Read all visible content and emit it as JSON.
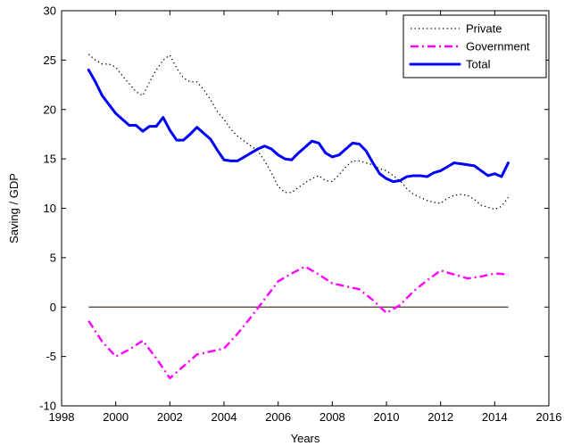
{
  "chart_data": {
    "type": "line",
    "title": "",
    "xlabel": "Years",
    "ylabel": "Saving / GDP",
    "xlim": [
      1998,
      2016
    ],
    "ylim": [
      -10,
      30
    ],
    "xticks": [
      1998,
      2000,
      2002,
      2004,
      2006,
      2008,
      2010,
      2012,
      2014,
      2016
    ],
    "yticks": [
      -10,
      -5,
      0,
      5,
      10,
      15,
      20,
      25,
      30
    ],
    "grid": false,
    "legend_position": "top-right",
    "reference_line": {
      "y": 0,
      "x_range": [
        1999,
        2014.5
      ],
      "color": "#4a3a2a"
    },
    "series": [
      {
        "name": "Private",
        "color": "#000000",
        "style": "dotted",
        "x": [
          1999,
          1999.25,
          1999.5,
          1999.75,
          2000,
          2000.25,
          2000.5,
          2000.75,
          2001,
          2001.25,
          2001.5,
          2001.75,
          2002,
          2002.25,
          2002.5,
          2002.75,
          2003,
          2003.25,
          2003.5,
          2003.75,
          2004,
          2004.25,
          2004.5,
          2004.75,
          2005,
          2005.25,
          2005.5,
          2005.75,
          2006,
          2006.25,
          2006.5,
          2006.75,
          2007,
          2007.25,
          2007.5,
          2007.75,
          2008,
          2008.25,
          2008.5,
          2008.75,
          2009,
          2009.25,
          2009.5,
          2009.75,
          2010,
          2010.25,
          2010.5,
          2010.75,
          2011,
          2011.25,
          2011.5,
          2011.75,
          2012,
          2012.25,
          2012.5,
          2012.75,
          2013,
          2013.25,
          2013.5,
          2013.75,
          2014,
          2014.25,
          2014.5
        ],
        "values": [
          25.6,
          25.0,
          24.6,
          24.6,
          24.3,
          23.4,
          22.6,
          21.8,
          21.4,
          22.8,
          24.0,
          25.0,
          25.5,
          24.2,
          23.2,
          22.8,
          22.8,
          22.0,
          21.0,
          19.8,
          19.0,
          18.0,
          17.3,
          16.8,
          16.3,
          15.8,
          14.8,
          13.6,
          12.2,
          11.6,
          11.6,
          12.1,
          12.6,
          13.0,
          13.3,
          12.8,
          12.7,
          13.4,
          14.2,
          14.8,
          14.8,
          14.6,
          14.4,
          14.0,
          13.8,
          13.3,
          12.8,
          12.0,
          11.4,
          11.1,
          10.8,
          10.6,
          10.5,
          11.0,
          11.3,
          11.4,
          11.3,
          10.9,
          10.3,
          10.1,
          9.9,
          10.2,
          11.1
        ]
      },
      {
        "name": "Government",
        "color": "#ff00ff",
        "style": "dashdot",
        "x": [
          1999,
          1999.5,
          2000,
          2000.5,
          2001,
          2001.5,
          2002,
          2002.5,
          2003,
          2003.5,
          2004,
          2004.5,
          2005,
          2005.5,
          2006,
          2006.5,
          2007,
          2007.5,
          2008,
          2008.5,
          2009,
          2009.5,
          2010,
          2010.5,
          2011,
          2011.5,
          2012,
          2012.5,
          2013,
          2013.5,
          2014,
          2014.5
        ],
        "values": [
          -1.4,
          -3.5,
          -5.0,
          -4.3,
          -3.4,
          -5.2,
          -7.2,
          -6.0,
          -4.8,
          -4.5,
          -4.2,
          -2.7,
          -1.0,
          0.8,
          2.6,
          3.4,
          4.1,
          3.3,
          2.4,
          2.1,
          1.8,
          0.7,
          -0.6,
          0.2,
          1.6,
          2.7,
          3.7,
          3.3,
          2.9,
          3.1,
          3.4,
          3.3
        ]
      },
      {
        "name": "Total",
        "color": "#0000ff",
        "style": "solid",
        "x": [
          1999,
          1999.25,
          1999.5,
          1999.75,
          2000,
          2000.25,
          2000.5,
          2000.75,
          2001,
          2001.25,
          2001.5,
          2001.75,
          2002,
          2002.25,
          2002.5,
          2002.75,
          2003,
          2003.25,
          2003.5,
          2003.75,
          2004,
          2004.25,
          2004.5,
          2004.75,
          2005,
          2005.25,
          2005.5,
          2005.75,
          2006,
          2006.25,
          2006.5,
          2006.75,
          2007,
          2007.25,
          2007.5,
          2007.75,
          2008,
          2008.25,
          2008.5,
          2008.75,
          2009,
          2009.25,
          2009.5,
          2009.75,
          2010,
          2010.25,
          2010.5,
          2010.75,
          2011,
          2011.25,
          2011.5,
          2011.75,
          2012,
          2012.25,
          2012.5,
          2012.75,
          2013,
          2013.25,
          2013.5,
          2013.75,
          2014,
          2014.25,
          2014.5
        ],
        "values": [
          24.0,
          22.8,
          21.4,
          20.5,
          19.6,
          19.0,
          18.4,
          18.4,
          17.8,
          18.3,
          18.3,
          19.2,
          17.9,
          16.9,
          16.9,
          17.5,
          18.2,
          17.6,
          17.0,
          15.9,
          14.9,
          14.8,
          14.8,
          15.2,
          15.6,
          16.0,
          16.3,
          16.0,
          15.4,
          15.0,
          14.9,
          15.6,
          16.2,
          16.8,
          16.6,
          15.6,
          15.2,
          15.4,
          16.0,
          16.6,
          16.5,
          15.8,
          14.6,
          13.5,
          13.0,
          12.7,
          12.8,
          13.2,
          13.3,
          13.3,
          13.2,
          13.6,
          13.8,
          14.2,
          14.6,
          14.5,
          14.4,
          14.3,
          13.8,
          13.3,
          13.5,
          13.2,
          14.6
        ]
      }
    ]
  }
}
